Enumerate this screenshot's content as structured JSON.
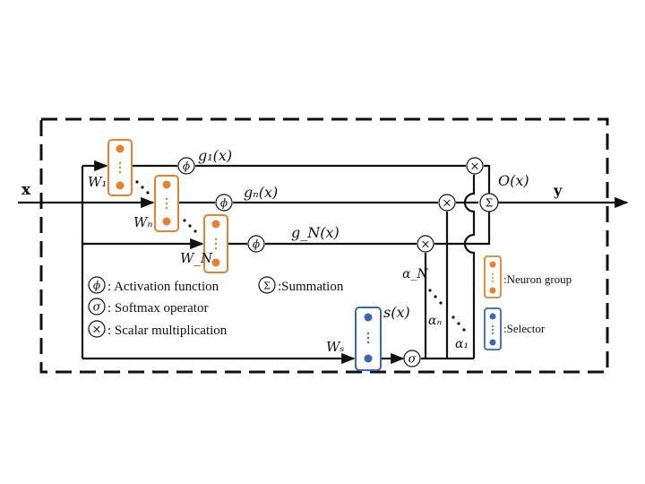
{
  "diagram": {
    "input_label": "x",
    "output_label": "y",
    "output_function": "O(x)",
    "branches": [
      {
        "weight_label": "W₁",
        "activation_symbol": "ϕ",
        "function_label": "g₁(x)",
        "alpha_label": "α₁"
      },
      {
        "weight_label": "Wₙ",
        "activation_symbol": "ϕ",
        "function_label": "gₙ(x)",
        "alpha_label": "αₙ"
      },
      {
        "weight_label": "W_N",
        "activation_symbol": "ϕ",
        "function_label": "g_N(x)",
        "alpha_label": "α_N"
      }
    ],
    "selector": {
      "weight_label": "Wₛ",
      "function_label": "s(x)",
      "softmax_symbol": "σ"
    },
    "summation_symbol": "Σ",
    "multiplication_symbol": "×",
    "colors": {
      "neuron_group": "#e8812f",
      "selector": "#3f63b5",
      "line": "#111111"
    }
  },
  "legend": {
    "activation": {
      "symbol": "ϕ",
      "text": ": Activation function"
    },
    "summation": {
      "symbol": "Σ",
      "text": ":Summation"
    },
    "softmax": {
      "symbol": "σ",
      "text": ": Softmax operator"
    },
    "scalar_mult": {
      "symbol": "×",
      "text": ": Scalar multiplication"
    },
    "neuron_group": {
      "text": ":Neuron group"
    },
    "selector": {
      "text": ":Selector"
    }
  }
}
